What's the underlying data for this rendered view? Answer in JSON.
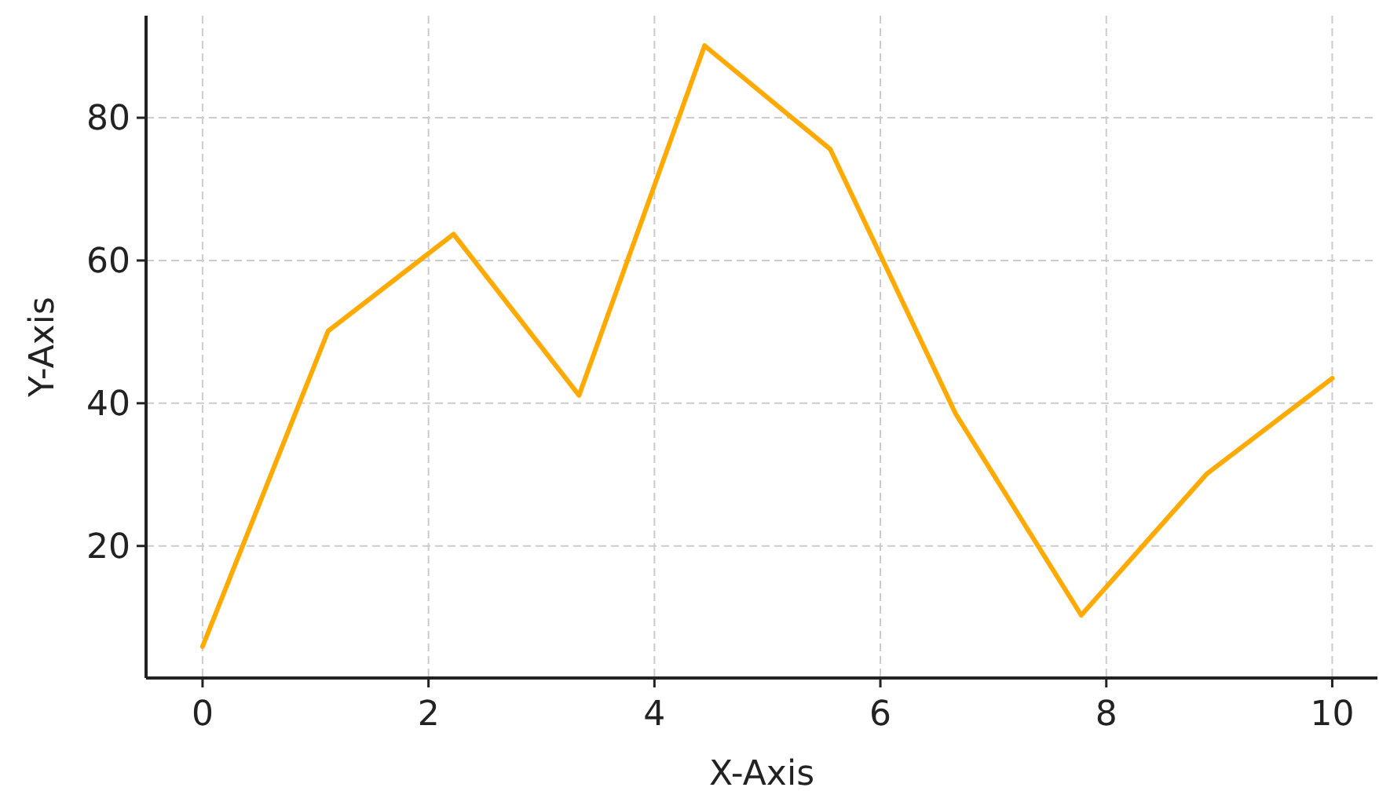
{
  "chart_data": {
    "type": "line",
    "xlabel": "X-Axis",
    "ylabel": "Y-Axis",
    "x": [
      0,
      1.111,
      2.222,
      3.333,
      4.444,
      5.556,
      6.667,
      7.778,
      8.889,
      10
    ],
    "series": [
      {
        "color": "#ffaa00",
        "values": [
          5.9,
          50.1,
          63.7,
          41.1,
          90.1,
          75.6,
          38.5,
          10.3,
          30.1,
          43.5
        ]
      }
    ],
    "xlim": [
      -0.5,
      10.4
    ],
    "ylim": [
      1.5,
      94.3
    ],
    "xticks": [
      0,
      2,
      4,
      6,
      8,
      10
    ],
    "yticks": [
      20,
      40,
      60,
      80
    ],
    "grid": true,
    "marker": "none",
    "line_style": "solid"
  }
}
